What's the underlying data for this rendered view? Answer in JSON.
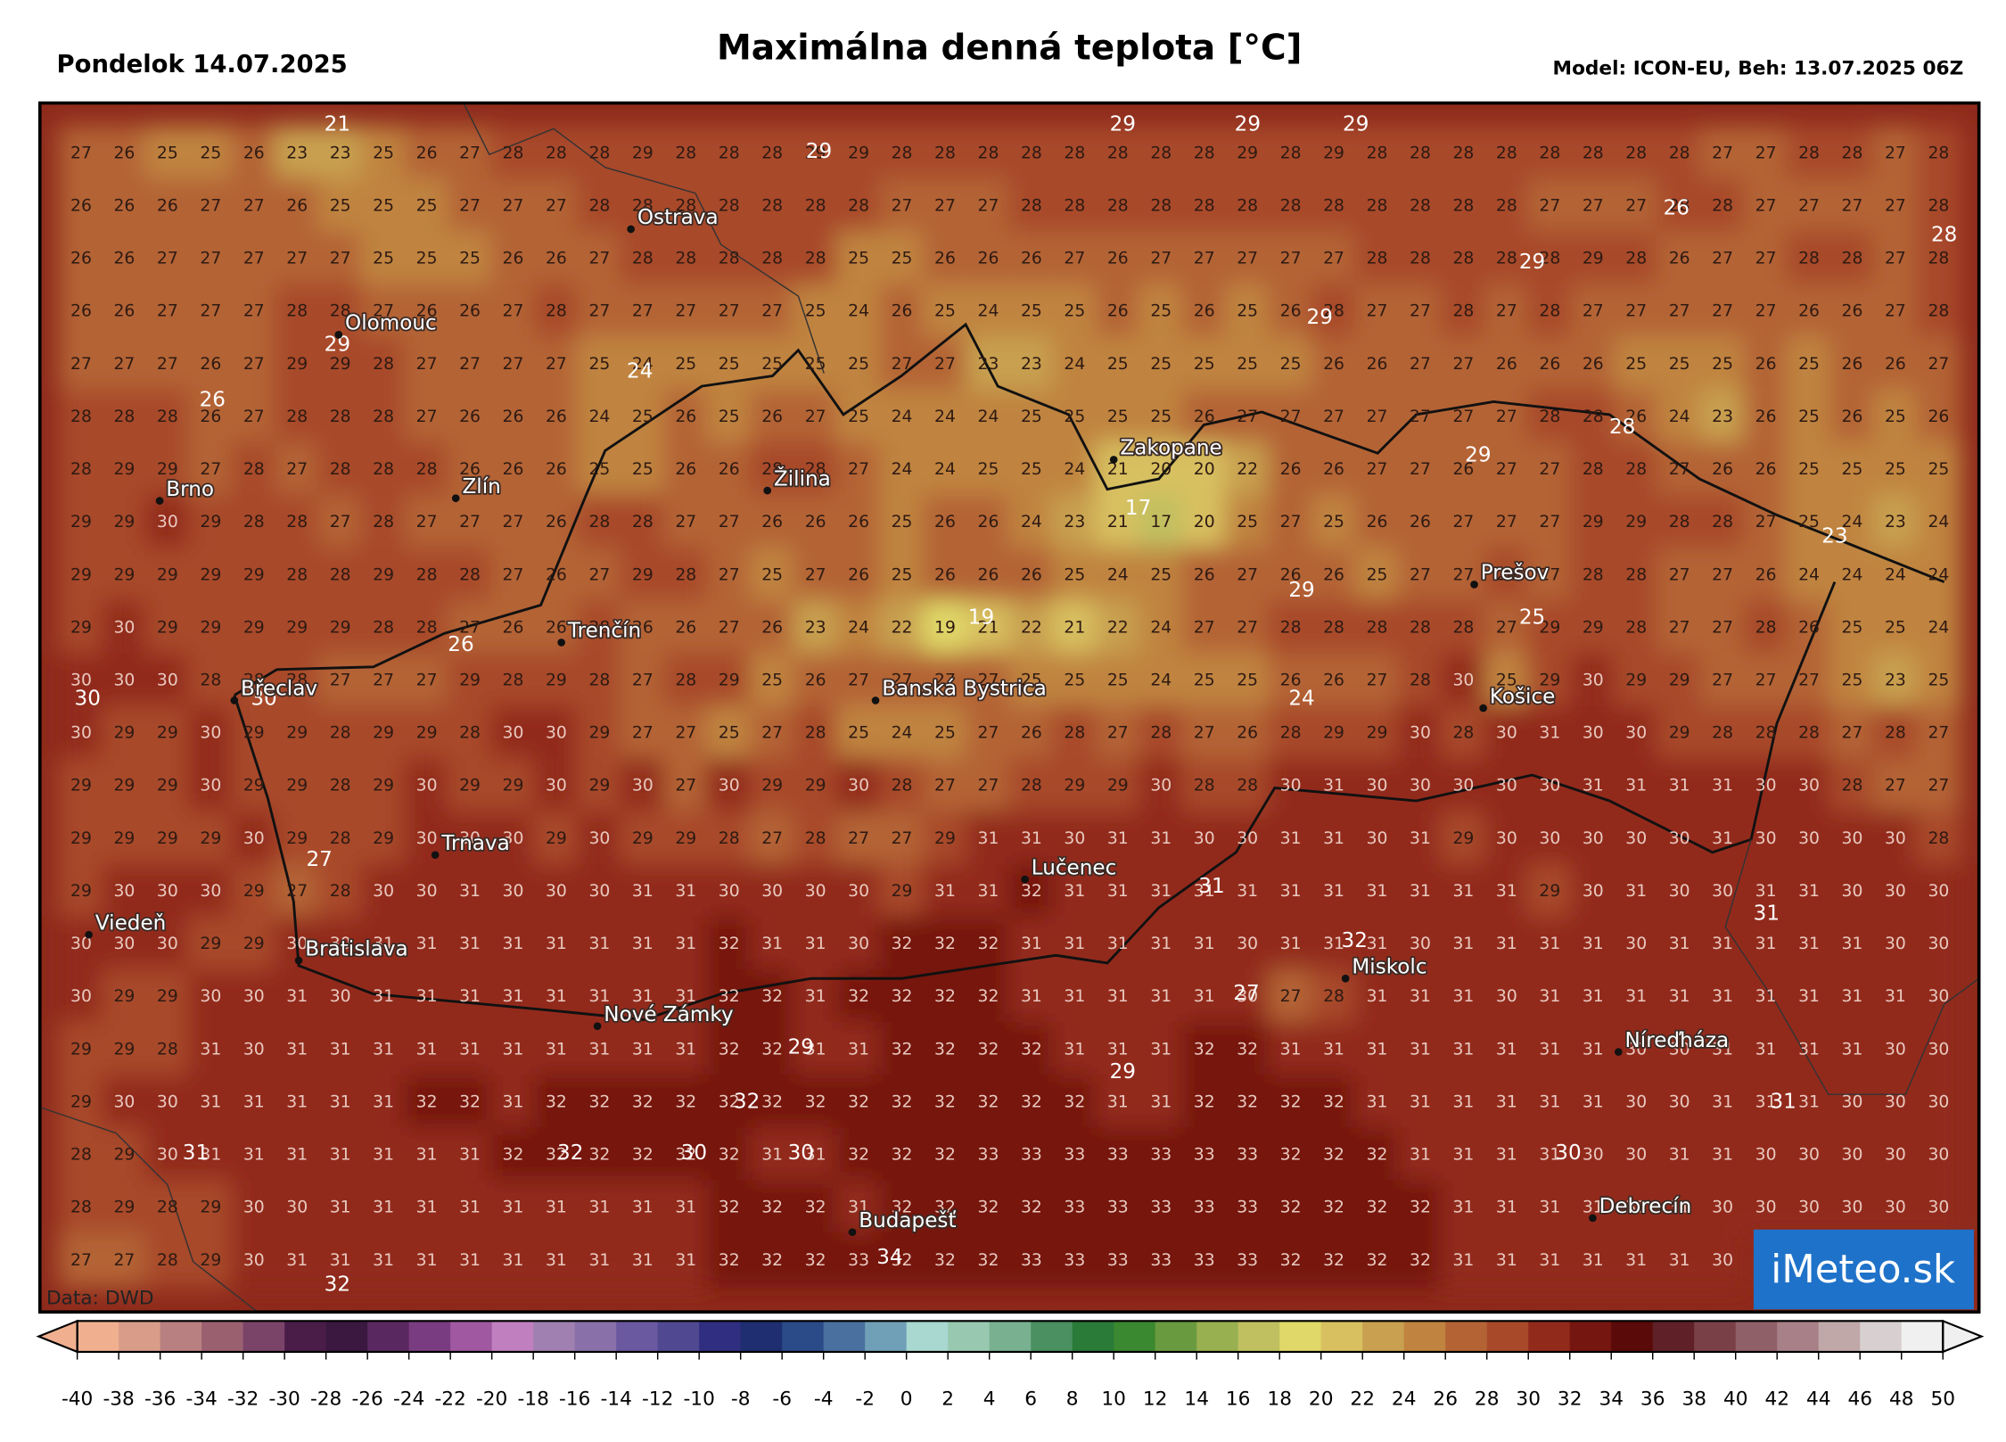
{
  "header": {
    "date": "Pondelok 14.07.2025",
    "title": "Maximálna denná teplota [°C]",
    "model": "Model: ICON-EU, Beh: 13.07.2025 06Z"
  },
  "grid": {
    "rows": [
      [
        27,
        26,
        25,
        25,
        26,
        23,
        23,
        25,
        26,
        27,
        28,
        28,
        28,
        29,
        28,
        28,
        28,
        29,
        29,
        28,
        28,
        28,
        28,
        28,
        28,
        28,
        28,
        29,
        28,
        29,
        28,
        28,
        28,
        28,
        28,
        28,
        28,
        28,
        27,
        27,
        28,
        28,
        27,
        28
      ],
      [
        26,
        26,
        26,
        27,
        27,
        26,
        25,
        25,
        25,
        27,
        27,
        27,
        28,
        28,
        28,
        28,
        28,
        28,
        28,
        27,
        27,
        27,
        28,
        28,
        28,
        28,
        28,
        28,
        28,
        28,
        28,
        28,
        28,
        28,
        27,
        27,
        27,
        28,
        28,
        27,
        27,
        27,
        27,
        28
      ],
      [
        26,
        26,
        27,
        27,
        27,
        27,
        27,
        25,
        25,
        25,
        26,
        26,
        27,
        28,
        28,
        28,
        28,
        28,
        25,
        25,
        26,
        26,
        26,
        27,
        26,
        27,
        27,
        27,
        27,
        27,
        28,
        28,
        28,
        28,
        28,
        29,
        28,
        26,
        27,
        27,
        28,
        28,
        27,
        28
      ],
      [
        26,
        26,
        27,
        27,
        27,
        28,
        28,
        27,
        26,
        26,
        27,
        28,
        27,
        27,
        27,
        27,
        27,
        25,
        24,
        26,
        25,
        24,
        25,
        25,
        26,
        25,
        26,
        25,
        26,
        28,
        27,
        27,
        28,
        27,
        28,
        27,
        27,
        27,
        27,
        27,
        26,
        26,
        27,
        28
      ],
      [
        27,
        27,
        27,
        26,
        27,
        29,
        29,
        28,
        27,
        27,
        27,
        27,
        25,
        24,
        25,
        25,
        25,
        25,
        25,
        27,
        27,
        23,
        23,
        24,
        25,
        25,
        25,
        25,
        25,
        26,
        26,
        27,
        27,
        26,
        26,
        26,
        25,
        25,
        25,
        26,
        25,
        26,
        26,
        27
      ],
      [
        28,
        28,
        28,
        26,
        27,
        28,
        28,
        28,
        27,
        26,
        26,
        26,
        24,
        25,
        26,
        25,
        26,
        27,
        25,
        24,
        24,
        24,
        25,
        25,
        25,
        25,
        26,
        27,
        27,
        27,
        27,
        27,
        27,
        27,
        28,
        28,
        26,
        24,
        23,
        26,
        25,
        26,
        25,
        26
      ],
      [
        28,
        29,
        29,
        27,
        28,
        27,
        28,
        28,
        28,
        26,
        26,
        26,
        25,
        25,
        26,
        26,
        28,
        28,
        27,
        24,
        24,
        25,
        25,
        24,
        21,
        20,
        20,
        22,
        26,
        26,
        27,
        27,
        26,
        27,
        27,
        28,
        28,
        27,
        26,
        26,
        25,
        25,
        25,
        25
      ],
      [
        29,
        29,
        30,
        29,
        28,
        28,
        27,
        28,
        27,
        27,
        27,
        26,
        28,
        28,
        27,
        27,
        26,
        26,
        26,
        25,
        26,
        26,
        24,
        23,
        21,
        17,
        20,
        25,
        27,
        25,
        26,
        26,
        27,
        27,
        27,
        29,
        29,
        28,
        28,
        27,
        25,
        24,
        23,
        24
      ],
      [
        29,
        29,
        29,
        29,
        29,
        28,
        28,
        29,
        28,
        28,
        27,
        26,
        27,
        29,
        28,
        27,
        25,
        27,
        26,
        25,
        26,
        26,
        26,
        25,
        24,
        25,
        26,
        27,
        26,
        26,
        25,
        27,
        27,
        28,
        27,
        28,
        28,
        27,
        27,
        26,
        24,
        24,
        24,
        24
      ],
      [
        29,
        30,
        29,
        29,
        29,
        29,
        29,
        28,
        28,
        27,
        26,
        26,
        28,
        26,
        26,
        27,
        26,
        23,
        24,
        22,
        19,
        21,
        22,
        21,
        22,
        24,
        27,
        27,
        28,
        28,
        28,
        28,
        28,
        27,
        29,
        29,
        28,
        27,
        27,
        28,
        26,
        25,
        25,
        24
      ],
      [
        30,
        30,
        30,
        28,
        28,
        28,
        27,
        27,
        27,
        29,
        28,
        29,
        28,
        27,
        28,
        29,
        25,
        26,
        27,
        27,
        27,
        27,
        25,
        25,
        25,
        24,
        25,
        25,
        26,
        26,
        27,
        28,
        30,
        25,
        29,
        30,
        29,
        29,
        27,
        27,
        27,
        25,
        23,
        25
      ],
      [
        30,
        29,
        29,
        30,
        29,
        29,
        28,
        29,
        29,
        28,
        30,
        30,
        29,
        27,
        27,
        25,
        27,
        28,
        25,
        24,
        25,
        27,
        26,
        28,
        27,
        28,
        27,
        26,
        28,
        29,
        29,
        30,
        28,
        30,
        31,
        30,
        30,
        29,
        28,
        28,
        28,
        27,
        28,
        27
      ],
      [
        29,
        29,
        29,
        30,
        29,
        29,
        28,
        29,
        30,
        29,
        29,
        30,
        29,
        30,
        27,
        30,
        29,
        29,
        30,
        28,
        27,
        27,
        28,
        29,
        29,
        30,
        28,
        28,
        30,
        31,
        30,
        30,
        30,
        30,
        30,
        31,
        31,
        31,
        31,
        30,
        30,
        28,
        27,
        27
      ],
      [
        29,
        29,
        29,
        29,
        30,
        29,
        28,
        29,
        30,
        30,
        30,
        29,
        30,
        29,
        29,
        28,
        27,
        28,
        27,
        27,
        29,
        31,
        31,
        30,
        31,
        31,
        30,
        30,
        31,
        31,
        30,
        31,
        29,
        30,
        30,
        30,
        30,
        30,
        31,
        30,
        30,
        30,
        30,
        28
      ],
      [
        29,
        30,
        30,
        30,
        29,
        27,
        28,
        30,
        30,
        31,
        30,
        30,
        30,
        31,
        31,
        30,
        30,
        30,
        30,
        29,
        31,
        31,
        32,
        31,
        31,
        31,
        31,
        31,
        31,
        31,
        31,
        31,
        31,
        31,
        29,
        30,
        31,
        30,
        30,
        31,
        31,
        30,
        30,
        30
      ],
      [
        30,
        30,
        30,
        29,
        29,
        30,
        30,
        31,
        31,
        31,
        31,
        31,
        31,
        31,
        31,
        32,
        31,
        31,
        30,
        32,
        32,
        32,
        31,
        31,
        31,
        31,
        31,
        30,
        31,
        31,
        31,
        30,
        31,
        31,
        31,
        31,
        30,
        31,
        31,
        31,
        31,
        31,
        30,
        30
      ],
      [
        30,
        29,
        29,
        30,
        30,
        31,
        30,
        31,
        31,
        31,
        31,
        31,
        31,
        31,
        31,
        32,
        32,
        31,
        32,
        32,
        32,
        32,
        31,
        31,
        31,
        31,
        31,
        30,
        27,
        28,
        31,
        31,
        31,
        30,
        31,
        31,
        31,
        31,
        31,
        31,
        31,
        31,
        31,
        30
      ],
      [
        29,
        29,
        28,
        31,
        30,
        31,
        31,
        31,
        31,
        31,
        31,
        31,
        31,
        31,
        31,
        32,
        32,
        31,
        31,
        32,
        32,
        32,
        32,
        31,
        31,
        31,
        32,
        32,
        31,
        31,
        31,
        31,
        31,
        31,
        31,
        31,
        30,
        30,
        31,
        31,
        31,
        31,
        30,
        30
      ],
      [
        29,
        30,
        30,
        31,
        31,
        31,
        31,
        31,
        32,
        32,
        31,
        32,
        32,
        32,
        32,
        32,
        32,
        32,
        32,
        32,
        32,
        32,
        32,
        32,
        31,
        31,
        32,
        32,
        32,
        32,
        31,
        31,
        31,
        31,
        31,
        31,
        30,
        30,
        31,
        31,
        31,
        30,
        30,
        30
      ],
      [
        28,
        29,
        30,
        31,
        31,
        31,
        31,
        31,
        31,
        31,
        32,
        32,
        32,
        32,
        32,
        32,
        31,
        31,
        32,
        32,
        32,
        33,
        33,
        33,
        33,
        33,
        33,
        33,
        32,
        32,
        32,
        31,
        31,
        31,
        31,
        30,
        30,
        31,
        31,
        30,
        30,
        30,
        30,
        30
      ],
      [
        28,
        29,
        28,
        29,
        30,
        30,
        31,
        31,
        31,
        31,
        31,
        31,
        31,
        31,
        31,
        32,
        32,
        32,
        31,
        32,
        32,
        32,
        32,
        33,
        33,
        33,
        33,
        33,
        32,
        32,
        32,
        32,
        31,
        31,
        31,
        31,
        31,
        31,
        30,
        30,
        30,
        30,
        30,
        30
      ],
      [
        27,
        27,
        28,
        29,
        30,
        31,
        31,
        31,
        31,
        31,
        31,
        31,
        31,
        31,
        31,
        32,
        32,
        32,
        33,
        32,
        32,
        32,
        33,
        33,
        33,
        33,
        33,
        33,
        32,
        32,
        32,
        32,
        31,
        31,
        31,
        31,
        31,
        31,
        30,
        null,
        null,
        null,
        null,
        null
      ]
    ]
  },
  "highlights": [
    21,
    29,
    29,
    29,
    29,
    26,
    28,
    29,
    24,
    29,
    26,
    28,
    29,
    29,
    23,
    17,
    19,
    29,
    25,
    26,
    30,
    30,
    24,
    27,
    31,
    31,
    32,
    27,
    29,
    29,
    32,
    31,
    31,
    32,
    30,
    30,
    30,
    34,
    32
  ],
  "cities": [
    "Ostrava",
    "Olomouc",
    "Brno",
    "Zlín",
    "Žilina",
    "Zakopane",
    "Prešov",
    "Trenčín",
    "Košice",
    "Břeclav",
    "Banská Bystrica",
    "Trnava",
    "Lučenec",
    "Viedeň",
    "Bratislava",
    "Miskolc",
    "Nové Zámky",
    "Níreďháza",
    "Debrecín",
    "Budapešť"
  ],
  "source": "Data: DWD",
  "logo": "iMeteo.sk",
  "colorbar": {
    "ticks": [
      -40,
      -38,
      -36,
      -34,
      -32,
      -30,
      -28,
      -26,
      -24,
      -22,
      -20,
      -18,
      -16,
      -14,
      -12,
      -10,
      -8,
      -6,
      -4,
      -2,
      0,
      2,
      4,
      6,
      8,
      10,
      12,
      14,
      16,
      18,
      20,
      22,
      24,
      26,
      28,
      30,
      32,
      34,
      36,
      38,
      40,
      42,
      44,
      46,
      48,
      50
    ],
    "colors": [
      "#f0b090",
      "#d89c88",
      "#b88080",
      "#9a6070",
      "#7a4468",
      "#4a1c48",
      "#3a1840",
      "#5a2860",
      "#7a3c80",
      "#a058a0",
      "#c080c0",
      "#a080b0",
      "#8a70a8",
      "#6a58a0",
      "#504890",
      "#302e80",
      "#1e2e70",
      "#2a4a88",
      "#4a70a0",
      "#70a0b8",
      "#a8d8d0",
      "#98c8b0",
      "#78b090",
      "#4a9060",
      "#2a7a38",
      "#3a8830",
      "#6a9a40",
      "#98b050",
      "#c0c060",
      "#e0d868",
      "#d8c060",
      "#c8a050",
      "#c08440",
      "#b46434",
      "#a84a2a",
      "#922a1c",
      "#761610",
      "#5a0a08",
      "#602028",
      "#7a4048",
      "#906068",
      "#a88088",
      "#c0a8a8",
      "#d8d0d0",
      "#f0f0f0"
    ]
  }
}
